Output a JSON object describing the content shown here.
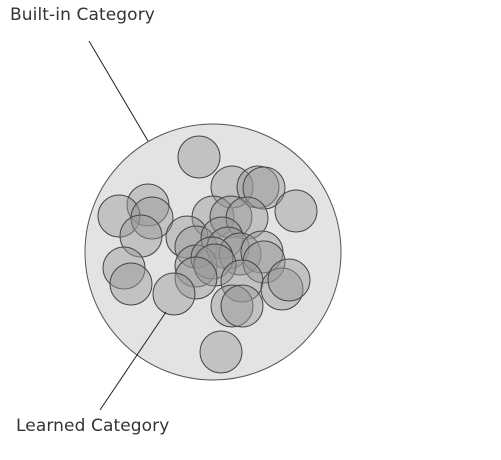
{
  "labels": {
    "built_in": "Built-in Category",
    "learned": "Learned Category"
  },
  "colors": {
    "outer_fill": "#e3e3e3",
    "outer_stroke": "#555555",
    "inner_fill": "#9a9a9a",
    "inner_fill_opacity": 0.45,
    "inner_stroke": "#444444",
    "leader_line": "#222222"
  }
}
